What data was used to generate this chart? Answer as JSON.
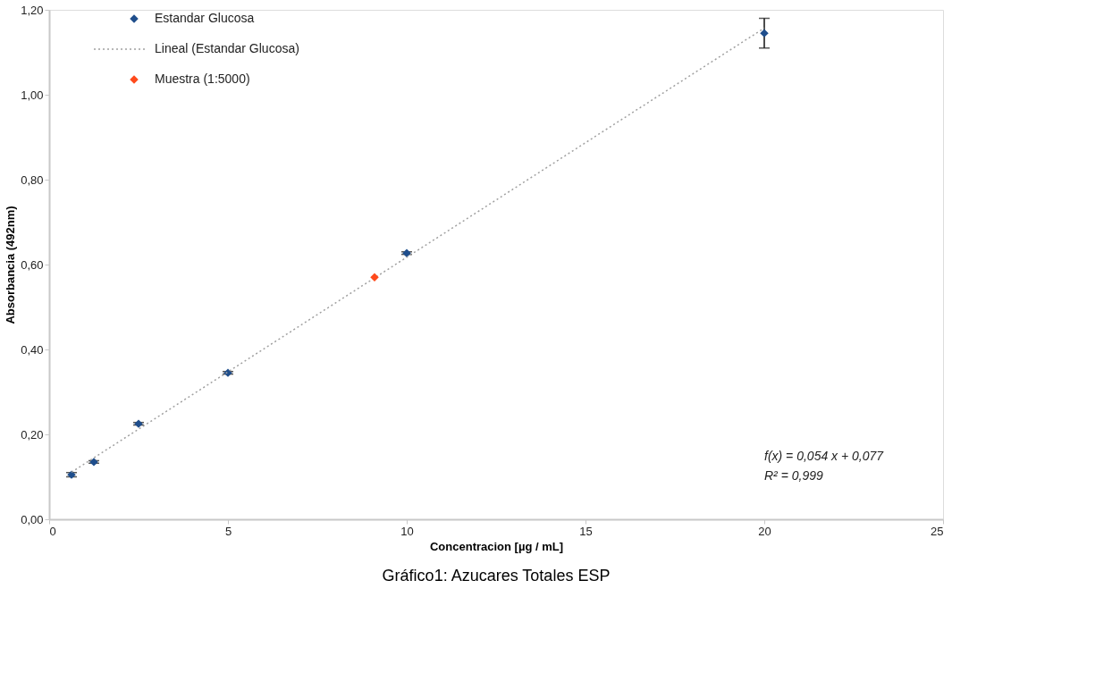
{
  "chart_data": {
    "type": "scatter",
    "xlabel": "Concentracion [µg / mL]",
    "ylabel": "Absorbancia (492nm)",
    "xlim": [
      0,
      25
    ],
    "xticks": [
      0,
      5,
      10,
      15,
      20,
      25
    ],
    "ylim": [
      0,
      1.2
    ],
    "yticks": [
      {
        "value": 0,
        "label": "0,00"
      },
      {
        "value": 0.2,
        "label": "0,20"
      },
      {
        "value": 0.4,
        "label": "0,40"
      },
      {
        "value": 0.6,
        "label": "0,60"
      },
      {
        "value": 0.8,
        "label": "0,80"
      },
      {
        "value": 1.0,
        "label": "1,00"
      },
      {
        "value": 1.2,
        "label": "1,20"
      }
    ],
    "grid": false,
    "legend": "top left",
    "series": [
      {
        "name": "Estandar Glucosa",
        "marker": "diamond",
        "color": "#1f4e8c",
        "x": [
          0.625,
          1.25,
          2.5,
          5,
          10,
          20
        ],
        "values": [
          0.105,
          0.135,
          0.225,
          0.345,
          0.627,
          1.145
        ],
        "errors": [
          0.005,
          0.003,
          0.003,
          0.003,
          0.003,
          [
            1.11,
            1.18
          ]
        ]
      },
      {
        "name": "Lineal (Estandar Glucosa)",
        "type": "line",
        "line_style": "dotted",
        "color": "#a0a0a0",
        "x": [
          0.625,
          20
        ],
        "values": [
          0.111,
          1.157
        ]
      },
      {
        "name": "Muestra (1:5000)",
        "type": "scatter",
        "marker": "diamond",
        "color": "#ff4a1c",
        "x": [
          9.1
        ],
        "values": [
          0.57
        ]
      }
    ],
    "annotations": [
      "f(x) = 0,054 x + 0,077",
      "R² = 0,999",
      "Gráfico1: Azucares Totales ESP"
    ]
  }
}
